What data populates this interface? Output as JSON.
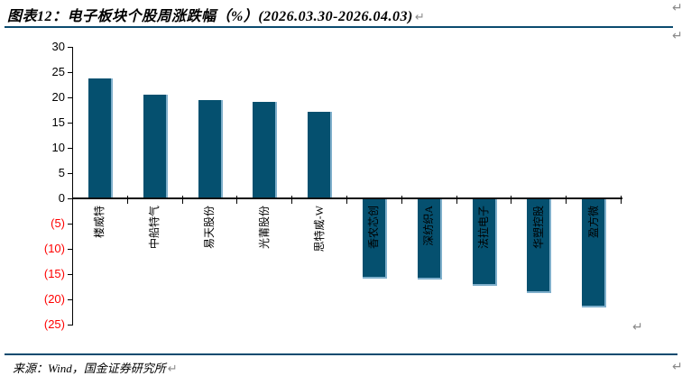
{
  "title": {
    "text": "图表12：电子板块个股周涨跌幅（%）(2026.03.30-2026.04.03)"
  },
  "footer": {
    "source": "来源：Wind，国金证券研究所"
  },
  "marks": {
    "return": "↵"
  },
  "chart_data": {
    "type": "bar",
    "title": "电子板块个股周涨跌幅（%）",
    "period": "2026.03.30-2026.04.03",
    "categories": [
      "楼威特",
      "中船特气",
      "易天股份",
      "光莆股份",
      "思特威-W",
      "香农芯创",
      "深纺织A",
      "法拉电子",
      "华塑控股",
      "盈方微"
    ],
    "values": [
      23.5,
      20.4,
      19.3,
      19.0,
      17.0,
      -15.4,
      -15.5,
      -16.7,
      -18.2,
      -21.0
    ],
    "xlabel": "",
    "ylabel": "",
    "ylim": [
      -25,
      30
    ],
    "ytick_step": 5,
    "grid": false,
    "legend": null,
    "bar_color": "#05506f",
    "bar_edge_color": "#7fafcb",
    "axis_color": "#000000",
    "positive_tick_label_color": "#000000",
    "negative_tick_label_color": "#ff0000",
    "negative_tick_label_format": "(n)"
  }
}
